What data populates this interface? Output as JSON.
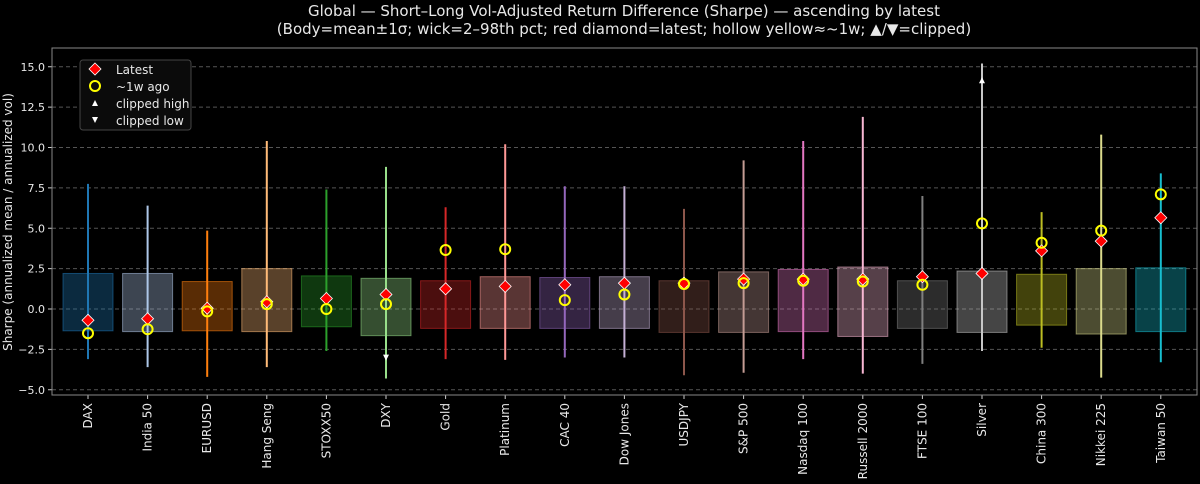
{
  "chart_data": {
    "type": "box-range",
    "title": "Global — Short–Long Vol-Adjusted Return Difference (Sharpe) — ascending by latest",
    "subtitle": "(Body=mean±1σ; wick=2–98th pct; red diamond=latest; hollow yellow≈~1w; ▲/▼=clipped)",
    "xlabel": "",
    "ylabel": "Sharpe (annualized mean / annualized vol)",
    "ylim": [
      -5.4,
      16.2
    ],
    "yticks": [
      "−5.0",
      "−2.5",
      "0.0",
      "2.5",
      "5.0",
      "7.5",
      "10.0",
      "12.5",
      "15.0"
    ],
    "ytick_values": [
      -5,
      -2.5,
      0,
      2.5,
      5,
      7.5,
      10,
      12.5,
      15
    ],
    "grid": "horizontal dashed",
    "legend": {
      "placement": "top-left",
      "entries": [
        {
          "label": "Latest",
          "marker": "red-diamond",
          "color": "#ff0000"
        },
        {
          "label": "~1w ago",
          "marker": "hollow-circle",
          "color": "#ffff00"
        },
        {
          "label": "clipped high",
          "marker": "triangle-up",
          "color": "#ffffff"
        },
        {
          "label": "clipped low",
          "marker": "triangle-down",
          "color": "#ffffff"
        }
      ]
    },
    "categories": [
      "DAX",
      "India 50",
      "EURUSD",
      "Hang Seng",
      "STOXX50",
      "DXY",
      "Gold",
      "Platinum",
      "CAC 40",
      "Dow Jones",
      "USDJPY",
      "S&P 500",
      "Nasdaq 100",
      "Russell 2000",
      "FTSE 100",
      "Silver",
      "China 300",
      "Nikkei 225",
      "Taiwan 50"
    ],
    "series": [
      {
        "category": "DAX",
        "color": "#1f77b4",
        "body": [
          -1.35,
          2.2
        ],
        "wick": [
          -3.1,
          7.75
        ],
        "latest": -0.7,
        "week_ago": -1.5
      },
      {
        "category": "India 50",
        "color": "#aec7e8",
        "body": [
          -1.4,
          2.2
        ],
        "wick": [
          -3.6,
          6.4
        ],
        "latest": -0.6,
        "week_ago": -1.25
      },
      {
        "category": "EURUSD",
        "color": "#ff7f0e",
        "body": [
          -1.35,
          1.7
        ],
        "wick": [
          -4.2,
          4.85
        ],
        "latest": 0.05,
        "week_ago": -0.15
      },
      {
        "category": "Hang Seng",
        "color": "#ffbb78",
        "body": [
          -1.4,
          2.5
        ],
        "wick": [
          -3.6,
          10.4
        ],
        "latest": 0.45,
        "week_ago": 0.3
      },
      {
        "category": "STOXX50",
        "color": "#2ca02c",
        "body": [
          -1.1,
          2.05
        ],
        "wick": [
          -2.6,
          7.4
        ],
        "latest": 0.65,
        "week_ago": 0.0
      },
      {
        "category": "DXY",
        "color": "#98df8a",
        "body": [
          -1.65,
          1.9
        ],
        "wick": [
          -4.3,
          8.8
        ],
        "latest": 0.9,
        "week_ago": 0.3,
        "clipped_low": -2.95
      },
      {
        "category": "Gold",
        "color": "#d62728",
        "body": [
          -1.2,
          1.75
        ],
        "wick": [
          -3.1,
          6.3
        ],
        "latest": 1.25,
        "week_ago": 3.65
      },
      {
        "category": "Platinum",
        "color": "#ff9896",
        "body": [
          -1.2,
          2.0
        ],
        "wick": [
          -3.15,
          10.2
        ],
        "latest": 1.4,
        "week_ago": 3.7
      },
      {
        "category": "CAC 40",
        "color": "#9467bd",
        "body": [
          -1.2,
          1.95
        ],
        "wick": [
          -3.0,
          7.6
        ],
        "latest": 1.5,
        "week_ago": 0.55
      },
      {
        "category": "Dow Jones",
        "color": "#c5b0d5",
        "body": [
          -1.2,
          2.0
        ],
        "wick": [
          -3.0,
          7.6
        ],
        "latest": 1.6,
        "week_ago": 0.9
      },
      {
        "category": "USDJPY",
        "color": "#8c564b",
        "body": [
          -1.45,
          1.75
        ],
        "wick": [
          -4.1,
          6.2
        ],
        "latest": 1.6,
        "week_ago": 1.55
      },
      {
        "category": "S&P 500",
        "color": "#c49c94",
        "body": [
          -1.45,
          2.3
        ],
        "wick": [
          -3.95,
          9.2
        ],
        "latest": 1.85,
        "week_ago": 1.6
      },
      {
        "category": "Nasdaq 100",
        "color": "#e377c2",
        "body": [
          -1.4,
          2.45
        ],
        "wick": [
          -3.1,
          10.4
        ],
        "latest": 1.85,
        "week_ago": 1.75
      },
      {
        "category": "Russell 2000",
        "color": "#f7b6d2",
        "body": [
          -1.7,
          2.6
        ],
        "wick": [
          -4.0,
          11.9
        ],
        "latest": 1.85,
        "week_ago": 1.7
      },
      {
        "category": "FTSE 100",
        "color": "#7f7f7f",
        "body": [
          -1.2,
          1.75
        ],
        "wick": [
          -3.4,
          7.0
        ],
        "latest": 2.0,
        "week_ago": 1.5
      },
      {
        "category": "Silver",
        "color": "#c7c7c7",
        "body": [
          -1.45,
          2.35
        ],
        "wick": [
          -2.6,
          15.2
        ],
        "latest": 2.2,
        "week_ago": 5.3,
        "clipped_high": 14.1
      },
      {
        "category": "China 300",
        "color": "#bcbd22",
        "body": [
          -1.0,
          2.15
        ],
        "wick": [
          -2.4,
          6.0
        ],
        "latest": 3.6,
        "week_ago": 4.1
      },
      {
        "category": "Nikkei 225",
        "color": "#dbdb8d",
        "body": [
          -1.55,
          2.5
        ],
        "wick": [
          -4.25,
          10.8
        ],
        "latest": 4.2,
        "week_ago": 4.85
      },
      {
        "category": "Taiwan 50",
        "color": "#17becf",
        "body": [
          -1.4,
          2.55
        ],
        "wick": [
          -3.3,
          8.4
        ],
        "latest": 5.65,
        "week_ago": 7.1
      }
    ]
  }
}
